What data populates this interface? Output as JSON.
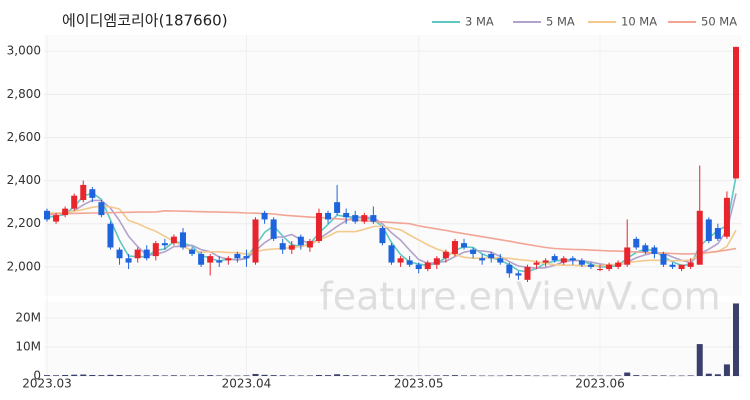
{
  "chart_data": {
    "type": "candlestick",
    "title": "에이디엠코리아(187660)",
    "watermark": "feature.enViewV.com",
    "up_color": "#e8242c",
    "down_color": "#1e64dc",
    "categories": [
      "2023.03",
      null,
      null,
      null,
      null,
      null,
      null,
      null,
      null,
      null,
      null,
      null,
      null,
      null,
      null,
      null,
      null,
      null,
      null,
      null,
      null,
      null,
      "2023.04",
      null,
      null,
      null,
      null,
      null,
      null,
      null,
      null,
      null,
      null,
      null,
      null,
      null,
      null,
      null,
      null,
      null,
      null,
      "2023.05",
      null,
      null,
      null,
      null,
      null,
      null,
      null,
      null,
      null,
      null,
      null,
      null,
      null,
      null,
      null,
      null,
      null,
      null,
      null,
      "2023.06",
      null,
      null,
      null,
      null,
      null,
      null,
      null,
      null,
      null,
      null,
      null,
      null,
      null,
      null,
      null
    ],
    "open": [
      2260,
      2210,
      2240,
      2270,
      2310,
      2360,
      2300,
      2200,
      2080,
      2040,
      2040,
      2080,
      2050,
      2110,
      2110,
      2160,
      2080,
      2060,
      2020,
      2030,
      2030,
      2060,
      2050,
      2020,
      2250,
      2220,
      2110,
      2080,
      2140,
      2090,
      2120,
      2250,
      2300,
      2250,
      2240,
      2210,
      2240,
      2180,
      2100,
      2020,
      2030,
      2010,
      1990,
      2010,
      2040,
      2060,
      2110,
      2080,
      2040,
      2060,
      2040,
      2010,
      1970,
      1940,
      2010,
      2020,
      2050,
      2020,
      2040,
      2030,
      2010,
      1990,
      1990,
      2000,
      2010,
      2130,
      2100,
      2090,
      2060,
      2010,
      1990,
      2000,
      2010,
      2220,
      2180,
      2140,
      2410
    ],
    "high": [
      2270,
      2250,
      2280,
      2340,
      2400,
      2370,
      2310,
      2210,
      2090,
      2060,
      2090,
      2100,
      2120,
      2130,
      2150,
      2180,
      2090,
      2070,
      2060,
      2050,
      2050,
      2070,
      2080,
      2230,
      2260,
      2230,
      2130,
      2120,
      2150,
      2130,
      2270,
      2260,
      2380,
      2270,
      2260,
      2250,
      2280,
      2190,
      2110,
      2050,
      2050,
      2020,
      2030,
      2050,
      2080,
      2130,
      2130,
      2090,
      2060,
      2070,
      2060,
      2020,
      1980,
      2010,
      2030,
      2040,
      2060,
      2050,
      2050,
      2040,
      2020,
      2010,
      2020,
      2030,
      2220,
      2140,
      2110,
      2100,
      2070,
      2020,
      2010,
      2040,
      2470,
      2230,
      2200,
      2350,
      3020
    ],
    "low": [
      2210,
      2200,
      2230,
      2260,
      2300,
      2300,
      2230,
      2080,
      2010,
      1990,
      2020,
      2030,
      2030,
      2080,
      2100,
      2080,
      2050,
      2000,
      1960,
      2000,
      2010,
      2020,
      2000,
      2010,
      2200,
      2120,
      2060,
      2060,
      2080,
      2070,
      2110,
      2200,
      2240,
      2200,
      2200,
      2200,
      2200,
      2100,
      2010,
      2000,
      2000,
      1970,
      1980,
      1990,
      2020,
      2050,
      2080,
      2040,
      2010,
      2020,
      2010,
      1950,
      1940,
      1930,
      1990,
      2000,
      2020,
      2010,
      2010,
      2000,
      1990,
      1980,
      1980,
      1990,
      2000,
      2080,
      2060,
      2040,
      2000,
      1990,
      1980,
      1990,
      2010,
      2110,
      2120,
      2130,
      2410
    ],
    "close": [
      2220,
      2240,
      2270,
      2330,
      2380,
      2320,
      2240,
      2090,
      2040,
      2020,
      2080,
      2040,
      2110,
      2100,
      2140,
      2090,
      2060,
      2010,
      2050,
      2020,
      2040,
      2040,
      2040,
      2220,
      2220,
      2130,
      2080,
      2100,
      2100,
      2120,
      2250,
      2220,
      2250,
      2230,
      2210,
      2240,
      2210,
      2110,
      2020,
      2040,
      2010,
      1990,
      2020,
      2040,
      2070,
      2120,
      2090,
      2060,
      2030,
      2040,
      2020,
      1970,
      1960,
      2000,
      2020,
      2030,
      2030,
      2040,
      2030,
      2010,
      2000,
      1990,
      2010,
      2020,
      2090,
      2090,
      2070,
      2060,
      2010,
      2000,
      2010,
      2020,
      2260,
      2120,
      2130,
      2320,
      3020
    ],
    "series": [
      {
        "name": "3 MA",
        "color": "#5ec8c2",
        "values": [
          2230,
          2235,
          2243,
          2280,
          2327,
          2343,
          2313,
          2217,
          2123,
          2050,
          2047,
          2047,
          2077,
          2083,
          2117,
          2110,
          2097,
          2053,
          2040,
          2027,
          2037,
          2033,
          2040,
          2100,
          2160,
          2190,
          2143,
          2103,
          2093,
          2107,
          2157,
          2197,
          2240,
          2233,
          2230,
          2227,
          2220,
          2187,
          2113,
          2057,
          2023,
          2013,
          2007,
          2017,
          2043,
          2077,
          2093,
          2090,
          2060,
          2043,
          2030,
          2010,
          1983,
          1977,
          1993,
          2017,
          2027,
          2033,
          2033,
          2027,
          2013,
          2000,
          2000,
          2007,
          2040,
          2067,
          2083,
          2073,
          2047,
          2023,
          2007,
          2010,
          2097,
          2133,
          2170,
          2190,
          2420
        ]
      },
      {
        "name": "5 MA",
        "color": "#b3a2cc",
        "values": [
          2240,
          2245,
          2250,
          2260,
          2288,
          2308,
          2308,
          2272,
          2214,
          2142,
          2094,
          2054,
          2058,
          2070,
          2094,
          2096,
          2100,
          2080,
          2070,
          2046,
          2036,
          2032,
          2038,
          2074,
          2112,
          2138,
          2138,
          2150,
          2126,
          2106,
          2130,
          2158,
          2188,
          2214,
          2232,
          2230,
          2228,
          2200,
          2158,
          2124,
          2078,
          2034,
          2016,
          2020,
          2026,
          2048,
          2068,
          2076,
          2074,
          2068,
          2048,
          2024,
          2004,
          1998,
          1994,
          1996,
          2008,
          2024,
          2030,
          2028,
          2022,
          2014,
          2008,
          2006,
          2022,
          2042,
          2056,
          2066,
          2064,
          2046,
          2030,
          2020,
          2060,
          2082,
          2108,
          2170,
          2340
        ]
      },
      {
        "name": "10 MA",
        "color": "#f3c98d",
        "values": [
          2250,
          2250,
          2252,
          2258,
          2266,
          2276,
          2282,
          2278,
          2268,
          2215,
          2201,
          2181,
          2165,
          2142,
          2118,
          2095,
          2077,
          2069,
          2070,
          2070,
          2066,
          2066,
          2059,
          2071,
          2079,
          2083,
          2085,
          2090,
          2095,
          2103,
          2124,
          2142,
          2163,
          2164,
          2163,
          2174,
          2187,
          2188,
          2180,
          2172,
          2148,
          2125,
          2102,
          2083,
          2069,
          2057,
          2045,
          2040,
          2041,
          2041,
          2042,
          2040,
          2034,
          2030,
          2025,
          2016,
          2010,
          2008,
          2008,
          2005,
          2003,
          2005,
          2010,
          2012,
          2019,
          2025,
          2029,
          2031,
          2029,
          2028,
          2029,
          2032,
          2057,
          2067,
          2071,
          2095,
          2170
        ]
      },
      {
        "name": "50 MA",
        "color": "#f2a595",
        "values": [
          2245,
          2246,
          2247,
          2248,
          2249,
          2250,
          2250,
          2251,
          2252,
          2253,
          2254,
          2254,
          2255,
          2260,
          2259,
          2258,
          2257,
          2256,
          2255,
          2254,
          2253,
          2252,
          2250,
          2249,
          2247,
          2245,
          2240,
          2237,
          2234,
          2231,
          2229,
          2226,
          2223,
          2220,
          2217,
          2214,
          2211,
          2209,
          2206,
          2203,
          2200,
          2190,
          2183,
          2176,
          2169,
          2161,
          2154,
          2147,
          2140,
          2133,
          2126,
          2119,
          2111,
          2104,
          2097,
          2090,
          2085,
          2083,
          2081,
          2080,
          2078,
          2076,
          2074,
          2073,
          2071,
          2069,
          2067,
          2065,
          2064,
          2062,
          2060,
          2060,
          2063,
          2067,
          2072,
          2078,
          2085
        ]
      }
    ],
    "ylim": [
      1865,
      3075
    ],
    "yticks": [
      {
        "value": 2000,
        "label": "2,000"
      },
      {
        "value": 2200,
        "label": "2,200"
      },
      {
        "value": 2400,
        "label": "2,400"
      },
      {
        "value": 2600,
        "label": "2,600"
      },
      {
        "value": 2800,
        "label": "2,800"
      },
      {
        "value": 3000,
        "label": "3,000"
      }
    ],
    "grid": true,
    "volume": {
      "color": "#3b3f6b",
      "ylim": [
        0,
        25500000
      ],
      "yticks": [
        0,
        {
          "value": 10000000,
          "label": "10M"
        },
        {
          "value": 20000000,
          "label": "20M"
        }
      ],
      "values": [
        300000,
        250000,
        350000,
        450000,
        500000,
        350000,
        300000,
        400000,
        350000,
        250000,
        250000,
        200000,
        250000,
        200000,
        250000,
        200000,
        200000,
        250000,
        300000,
        200000,
        150000,
        150000,
        200000,
        700000,
        400000,
        300000,
        250000,
        200000,
        200000,
        200000,
        350000,
        300000,
        600000,
        300000,
        250000,
        250000,
        250000,
        300000,
        300000,
        200000,
        150000,
        200000,
        200000,
        200000,
        250000,
        300000,
        200000,
        200000,
        150000,
        150000,
        150000,
        250000,
        200000,
        200000,
        150000,
        150000,
        150000,
        150000,
        150000,
        150000,
        150000,
        150000,
        150000,
        200000,
        1200000,
        300000,
        200000,
        200000,
        200000,
        150000,
        150000,
        200000,
        11000000,
        800000,
        600000,
        4000000,
        25000000
      ]
    }
  }
}
